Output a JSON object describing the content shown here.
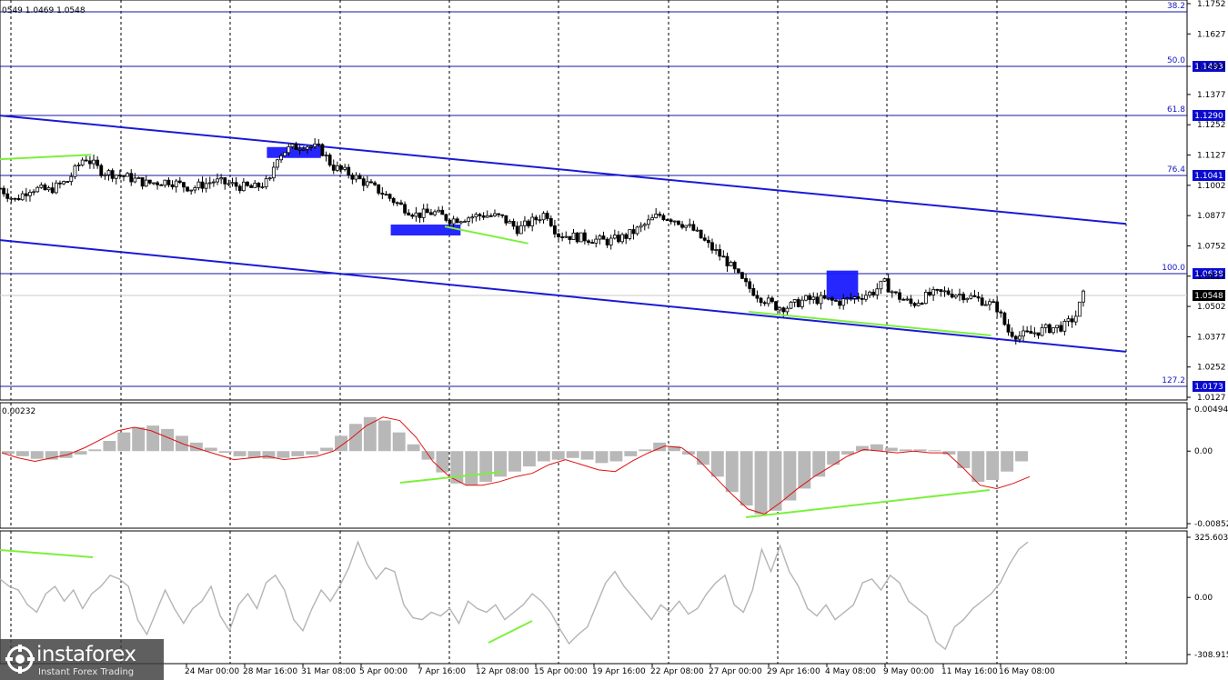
{
  "header": {
    "ohlc_text": "0549 1.0469 1.0548"
  },
  "chart_data": [
    {
      "type": "candlestick",
      "instrument_panel": "price",
      "ylim": [
        1.0127,
        1.1752
      ],
      "y_ticks": [
        "1.1752",
        "1.1627",
        "1.1493",
        "1.1377",
        "1.1252",
        "1.1127",
        "1.1002",
        "1.0877",
        "1.0752",
        "1.0627",
        "1.0502",
        "1.0377",
        "1.0252",
        "1.0127"
      ],
      "x_labels": [
        "24 Mar 00:00",
        "28 Mar 16:00",
        "31 Mar 08:00",
        "5 Apr 00:00",
        "7 Apr 16:00",
        "12 Apr 08:00",
        "15 Apr 00:00",
        "19 Apr 16:00",
        "22 Apr 08:00",
        "27 Apr 00:00",
        "29 Apr 16:00",
        "4 May 08:00",
        "9 May 00:00",
        "11 May 16:00",
        "16 May 08:00"
      ],
      "fibonacci_levels": [
        {
          "ratio": "38.2",
          "price": "1.1720"
        },
        {
          "ratio": "50.0",
          "price": "1.1493"
        },
        {
          "ratio": "61.8",
          "price": "1.1290"
        },
        {
          "ratio": "76.4",
          "price": "1.1041"
        },
        {
          "ratio": "100.0",
          "price": "1.0638"
        },
        {
          "ratio": "127.2",
          "price": "1.0173"
        }
      ],
      "current_price": "1.0548",
      "channel": {
        "upper": [
          [
            0,
            1.129
          ],
          [
            1,
            1.0843
          ]
        ],
        "lower": [
          [
            0,
            1.0776
          ],
          [
            1,
            1.0315
          ]
        ]
      },
      "close_path": [
        [
          0,
          1.099
        ],
        [
          0.013,
          1.094
        ],
        [
          0.027,
          1.099
        ],
        [
          0.043,
          1.098
        ],
        [
          0.06,
          1.102
        ],
        [
          0.075,
          1.112
        ],
        [
          0.09,
          1.106
        ],
        [
          0.11,
          1.104
        ],
        [
          0.13,
          1.101
        ],
        [
          0.15,
          1.102
        ],
        [
          0.17,
          1.099
        ],
        [
          0.19,
          1.102
        ],
        [
          0.21,
          1.1
        ],
        [
          0.225,
          1.099
        ],
        [
          0.24,
          1.102
        ],
        [
          0.245,
          1.112
        ],
        [
          0.255,
          1.115
        ],
        [
          0.27,
          1.117
        ],
        [
          0.285,
          1.115
        ],
        [
          0.295,
          1.108
        ],
        [
          0.31,
          1.105
        ],
        [
          0.325,
          1.101
        ],
        [
          0.34,
          1.097
        ],
        [
          0.355,
          1.092
        ],
        [
          0.37,
          1.088
        ],
        [
          0.385,
          1.089
        ],
        [
          0.4,
          1.086
        ],
        [
          0.415,
          1.087
        ],
        [
          0.43,
          1.088
        ],
        [
          0.445,
          1.087
        ],
        [
          0.46,
          1.082
        ],
        [
          0.475,
          1.086
        ],
        [
          0.485,
          1.089
        ],
        [
          0.495,
          1.08
        ],
        [
          0.51,
          1.079
        ],
        [
          0.525,
          1.078
        ],
        [
          0.54,
          1.077
        ],
        [
          0.555,
          1.079
        ],
        [
          0.57,
          1.083
        ],
        [
          0.585,
          1.088
        ],
        [
          0.6,
          1.086
        ],
        [
          0.615,
          1.082
        ],
        [
          0.63,
          1.075
        ],
        [
          0.645,
          1.069
        ],
        [
          0.66,
          1.06
        ],
        [
          0.675,
          1.054
        ],
        [
          0.69,
          1.05
        ],
        [
          0.7,
          1.05
        ],
        [
          0.715,
          1.053
        ],
        [
          0.73,
          1.053
        ],
        [
          0.745,
          1.052
        ],
        [
          0.76,
          1.054
        ],
        [
          0.775,
          1.056
        ],
        [
          0.785,
          1.06
        ],
        [
          0.795,
          1.055
        ],
        [
          0.81,
          1.051
        ],
        [
          0.825,
          1.055
        ],
        [
          0.84,
          1.056
        ],
        [
          0.855,
          1.055
        ],
        [
          0.87,
          1.053
        ],
        [
          0.885,
          1.05
        ],
        [
          0.895,
          1.04
        ],
        [
          0.905,
          1.038
        ],
        [
          0.915,
          1.039
        ],
        [
          0.93,
          1.041
        ],
        [
          0.945,
          1.042
        ],
        [
          0.955,
          1.046
        ],
        [
          0.962,
          1.0548
        ]
      ],
      "annotations": [
        "blue boxes at swing highs/lows",
        "green trend lines"
      ]
    },
    {
      "type": "histogram",
      "instrument_panel": "macd",
      "value_label": "0.00232",
      "ylim": [
        -0.00852,
        0.00494
      ],
      "y_ticks": [
        "0.00494",
        "0.00",
        "-0.00852"
      ],
      "histogram": [
        -0.0003,
        -0.0006,
        -0.0009,
        -0.001,
        -0.0008,
        -0.0004,
        0.0002,
        0.0012,
        0.0022,
        0.0028,
        0.003,
        0.0026,
        0.0018,
        0.001,
        0.0004,
        -0.0002,
        -0.0006,
        -0.0008,
        -0.0009,
        -0.0008,
        -0.0006,
        -0.0004,
        0.0004,
        0.0018,
        0.0032,
        0.004,
        0.0036,
        0.0022,
        0.0008,
        -0.001,
        -0.0025,
        -0.0038,
        -0.004,
        -0.0036,
        -0.003,
        -0.0024,
        -0.0018,
        -0.0012,
        -0.001,
        -0.0008,
        -0.001,
        -0.0014,
        -0.0012,
        -0.0006,
        0.0002,
        0.001,
        0.0006,
        -0.0004,
        -0.0016,
        -0.003,
        -0.0048,
        -0.0064,
        -0.0074,
        -0.007,
        -0.0058,
        -0.0044,
        -0.003,
        -0.0016,
        -0.0004,
        0.0006,
        0.0008,
        0.0004,
        0.0002,
        0.0002,
        0.0001,
        -0.0004,
        -0.002,
        -0.0036,
        -0.0034,
        -0.0024,
        -0.0012
      ],
      "signal_line": [
        -0.0002,
        -0.0008,
        -0.0012,
        -0.0008,
        -0.0004,
        0.0004,
        0.0014,
        0.0024,
        0.0028,
        0.0024,
        0.0016,
        0.0008,
        0.0002,
        -0.0004,
        -0.001,
        -0.0008,
        -0.0006,
        -0.001,
        -0.0008,
        -0.0006,
        0.0,
        0.0014,
        0.003,
        0.004,
        0.0036,
        0.0016,
        -0.0012,
        -0.003,
        -0.004,
        -0.004,
        -0.0036,
        -0.003,
        -0.0026,
        -0.0016,
        -0.001,
        -0.0016,
        -0.0022,
        -0.0024,
        -0.0012,
        -0.0002,
        0.0006,
        0.0004,
        -0.001,
        -0.003,
        -0.005,
        -0.0068,
        -0.0074,
        -0.006,
        -0.0044,
        -0.003,
        -0.0018,
        -0.0006,
        0.0002,
        0.0,
        -0.0002,
        0.0,
        -0.0002,
        -0.0002,
        -0.002,
        -0.004,
        -0.0044,
        -0.0038,
        -0.003
      ]
    },
    {
      "type": "line",
      "instrument_panel": "cci",
      "ylim": [
        -308.915,
        325.6039
      ],
      "y_ticks": [
        "325.6039",
        "0.00",
        "-308.915"
      ],
      "values": [
        100,
        60,
        40,
        -40,
        -80,
        20,
        60,
        -20,
        40,
        -60,
        20,
        60,
        120,
        100,
        60,
        -120,
        -200,
        -80,
        40,
        -60,
        -140,
        -60,
        -20,
        60,
        -100,
        -180,
        -40,
        20,
        -60,
        80,
        120,
        40,
        -120,
        -180,
        -60,
        40,
        -20,
        60,
        160,
        300,
        180,
        100,
        160,
        140,
        -40,
        -110,
        -120,
        -80,
        -100,
        -60,
        -140,
        -20,
        -60,
        -80,
        -40,
        -120,
        -80,
        -40,
        20,
        -20,
        -80,
        -170,
        -250,
        -200,
        -160,
        -40,
        80,
        140,
        60,
        0,
        -60,
        -120,
        -40,
        -80,
        -20,
        -90,
        -60,
        20,
        80,
        120,
        -40,
        -80,
        40,
        260,
        140,
        280,
        140,
        60,
        -60,
        -100,
        -40,
        -120,
        -80,
        -40,
        80,
        100,
        40,
        120,
        80,
        -20,
        -60,
        -100,
        -240,
        -280,
        -160,
        -120,
        -60,
        -20,
        20,
        80,
        180,
        260,
        300
      ]
    }
  ]
}
